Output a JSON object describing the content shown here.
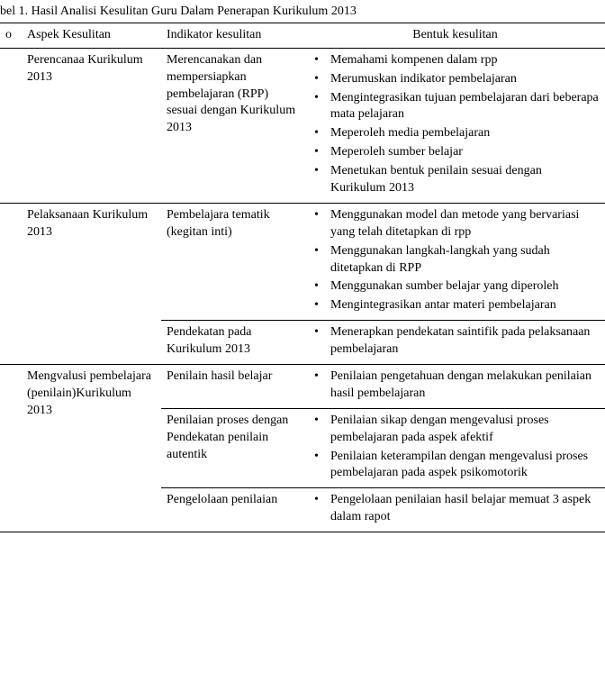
{
  "title": "bel 1. Hasil Analisi Kesulitan Guru Dalam Penerapan Kurikulum 2013",
  "headers": {
    "no": "o",
    "aspek": "Aspek Kesulitan",
    "indikator": "Indikator kesulitan",
    "bentuk": "Bentuk kesulitan"
  },
  "rows": [
    {
      "no": "",
      "aspek": "Perencanaa Kurikulum 2013",
      "sub": [
        {
          "indikator": "Merencanakan dan mempersiapkan pembelajaran (RPP) sesuai dengan Kurikulum 2013",
          "bentuk": [
            "Memahami kompenen dalam rpp",
            "Merumuskan indikator pembelajaran",
            "Mengintegrasikan tujuan pembelajaran dari beberapa mata pelajaran",
            "Meperoleh media pembelajaran",
            "Meperoleh sumber belajar",
            "Menetukan bentuk penilain sesuai dengan Kurikulum 2013"
          ]
        }
      ]
    },
    {
      "no": "",
      "aspek": "Pelaksanaan Kurikulum 2013",
      "sub": [
        {
          "indikator": "Pembelajara tematik (kegitan inti)",
          "bentuk": [
            "Menggunakan model dan metode yang bervariasi yang telah ditetapkan di rpp",
            "Menggunakan langkah-langkah yang sudah ditetapkan di RPP",
            "Menggunakan sumber belajar yang diperoleh",
            "Mengintegrasikan antar materi pembelajaran"
          ]
        },
        {
          "indikator": "Pendekatan pada Kurikulum 2013",
          "bentuk": [
            "Menerapkan pendekatan saintifik pada pelaksanaan pembelajaran"
          ]
        }
      ]
    },
    {
      "no": "",
      "aspek": "Mengvalusi pembelajara (penilain)Kurikulum 2013",
      "sub": [
        {
          "indikator": "Penilain hasil belajar",
          "bentuk": [
            "Penilaian pengetahuan dengan melakukan penilaian hasil pembelajaran"
          ]
        },
        {
          "indikator": "Penilaian proses dengan Pendekatan penilain autentik",
          "bentuk": [
            "Penilaian sikap dengan mengevalusi proses pembelajaran pada aspek afektif",
            "Penilaian keterampilan dengan mengevalusi proses pembelajaran pada aspek psikomotorik"
          ]
        },
        {
          "indikator": "Pengelolaan penilaian",
          "bentuk": [
            "Pengelolaan penilaian hasil belajar memuat 3 aspek dalam rapot"
          ]
        }
      ]
    }
  ]
}
